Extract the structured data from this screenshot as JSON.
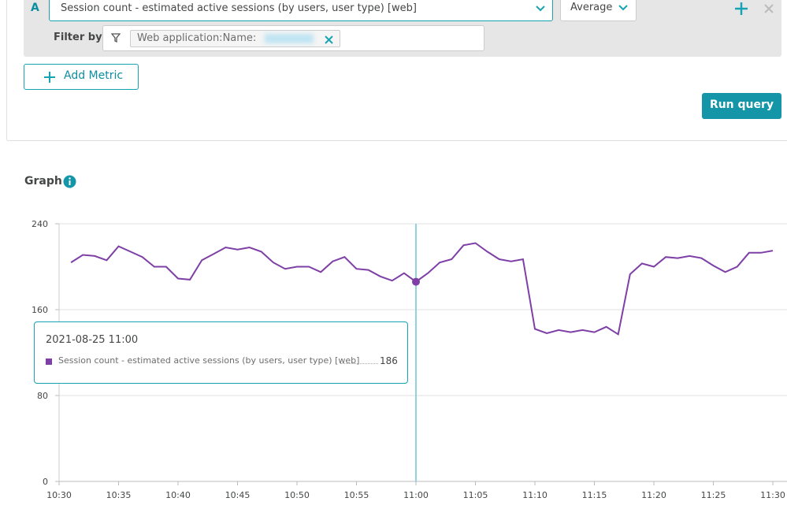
{
  "query": {
    "row_label": "A",
    "metric": "Session count - estimated active sessions (by users, user type) [web]",
    "aggregation": "Average",
    "filter_label": "Filter by",
    "filter_value": "Web application:Name:",
    "add_metric": "Add Metric",
    "run_query": "Run query"
  },
  "section_title": "Graph",
  "chart_data": {
    "type": "line",
    "x": [
      "10:31",
      "10:32",
      "10:33",
      "10:34",
      "10:35",
      "10:36",
      "10:37",
      "10:38",
      "10:39",
      "10:40",
      "10:41",
      "10:42",
      "10:43",
      "10:44",
      "10:45",
      "10:46",
      "10:47",
      "10:48",
      "10:49",
      "10:50",
      "10:51",
      "10:52",
      "10:53",
      "10:54",
      "10:55",
      "10:56",
      "10:57",
      "10:58",
      "10:59",
      "11:00",
      "11:01",
      "11:02",
      "11:03",
      "11:04",
      "11:05",
      "11:06",
      "11:07",
      "11:08",
      "11:09",
      "11:10",
      "11:11",
      "11:12",
      "11:13",
      "11:14",
      "11:15",
      "11:16",
      "11:17",
      "11:18",
      "11:19",
      "11:20",
      "11:21",
      "11:22",
      "11:23",
      "11:24",
      "11:25",
      "11:26",
      "11:27",
      "11:28",
      "11:29",
      "11:30"
    ],
    "series": [
      {
        "name": "Session count - estimated active sessions (by users, user type) [web]",
        "color": "#7e3fa6",
        "values": [
          204,
          211,
          210,
          206,
          219,
          214,
          209,
          200,
          200,
          189,
          188,
          206,
          212,
          218,
          216,
          218,
          214,
          204,
          198,
          200,
          200,
          195,
          205,
          209,
          198,
          197,
          191,
          187,
          194,
          186,
          194,
          204,
          207,
          220,
          222,
          214,
          207,
          205,
          207,
          142,
          138,
          141,
          139,
          141,
          139,
          144,
          137,
          193,
          203,
          200,
          209,
          208,
          210,
          208,
          201,
          195,
          200,
          213,
          213,
          215
        ]
      }
    ],
    "xlim": [
      "10:30",
      "11:30"
    ],
    "xticks": [
      "10:30",
      "10:35",
      "10:40",
      "10:45",
      "10:50",
      "10:55",
      "11:00",
      "11:05",
      "11:10",
      "11:15",
      "11:20",
      "11:25",
      "11:30"
    ],
    "ylim": [
      0,
      240
    ],
    "yticks": [
      0,
      80,
      160,
      240
    ],
    "grid": true,
    "tooltip": {
      "title": "2021-08-25 11:00"
    }
  }
}
